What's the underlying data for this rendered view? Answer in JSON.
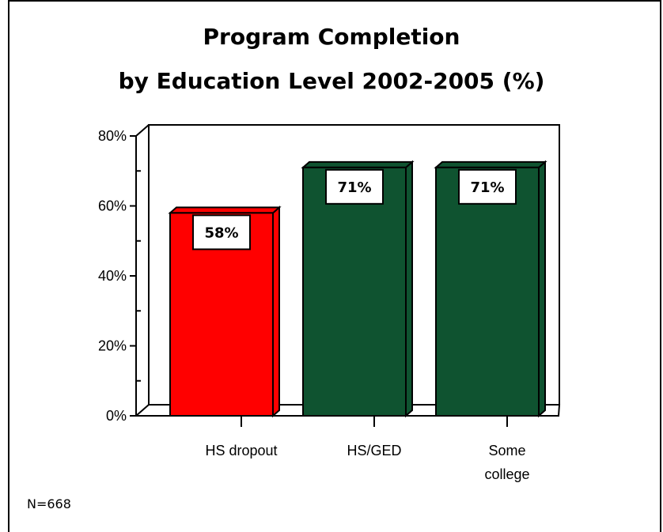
{
  "chart_data": {
    "type": "bar",
    "title_lines": [
      "Program Completion",
      "by Education Level 2002-2005 (%)"
    ],
    "categories": [
      [
        "HS dropout"
      ],
      [
        "HS/GED"
      ],
      [
        "Some",
        "college"
      ]
    ],
    "values": [
      58,
      71,
      71
    ],
    "value_labels": [
      "58%",
      "71%",
      "71%"
    ],
    "ylim": [
      0,
      80
    ],
    "yticks": [
      {
        "value": 0,
        "label": "0%"
      },
      {
        "value": 20,
        "label": "20%"
      },
      {
        "value": 40,
        "label": "40%"
      },
      {
        "value": 60,
        "label": "60%"
      },
      {
        "value": 80,
        "label": "80%"
      }
    ],
    "bar_colors": [
      "#ff0000",
      "#0f5330",
      "#0f5330"
    ],
    "grid": false,
    "legend": "none",
    "xlabel": "",
    "ylabel": ""
  },
  "note": "N=668"
}
